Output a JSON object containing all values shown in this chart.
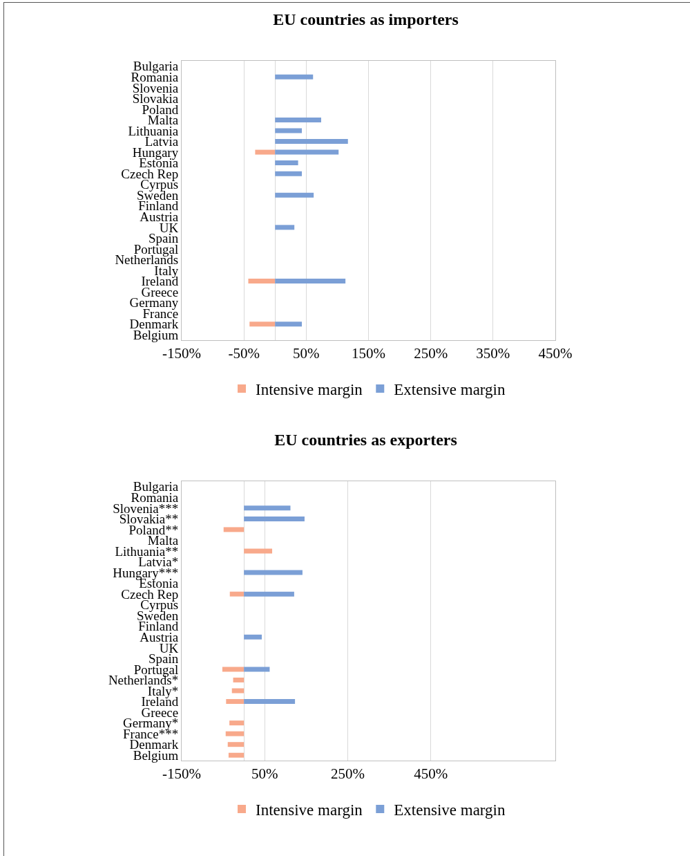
{
  "chart_data": [
    {
      "type": "bar",
      "title": "EU countries as importers",
      "orientation": "horizontal",
      "stacked": true,
      "grid": "x",
      "legend": "bottom",
      "categories": [
        "Bulgaria",
        "Romania",
        "Slovenia",
        "Slovakia",
        "Poland",
        "Malta",
        "Lithuania",
        "Latvia",
        "Hungary",
        "Estonia",
        "Czech Rep",
        "Cyrpus",
        "Sweden",
        "Finland",
        "Austria",
        "UK",
        "Spain",
        "Portugal",
        "Netherlands",
        "Italy",
        "Ireland",
        "Greece",
        "Germany",
        "France",
        "Denmark",
        "Belgium"
      ],
      "series": [
        {
          "name": "Intensive margin",
          "color": "#f8a98b",
          "values": [
            null,
            null,
            null,
            null,
            null,
            null,
            null,
            null,
            -32,
            null,
            null,
            null,
            null,
            null,
            null,
            null,
            null,
            null,
            null,
            null,
            -43,
            null,
            null,
            null,
            -41,
            null
          ]
        },
        {
          "name": "Extensive margin",
          "color": "#7b9fd6",
          "values": [
            null,
            61,
            null,
            null,
            null,
            74,
            43,
            117,
            102,
            37,
            43,
            null,
            62,
            null,
            null,
            31,
            null,
            null,
            null,
            null,
            113,
            null,
            null,
            null,
            43,
            null
          ]
        }
      ],
      "xlim": [
        -150,
        450
      ],
      "xticks": [
        {
          "value": -150,
          "label": "-150%"
        },
        {
          "value": -50,
          "label": "-50%"
        },
        {
          "value": 50,
          "label": "50%"
        },
        {
          "value": 150,
          "label": "150%"
        },
        {
          "value": 250,
          "label": "250%"
        },
        {
          "value": 350,
          "label": "350%"
        },
        {
          "value": 450,
          "label": "450%"
        }
      ]
    },
    {
      "type": "bar",
      "title": "EU countries as exporters",
      "orientation": "horizontal",
      "stacked": true,
      "grid": "x",
      "legend": "bottom",
      "categories": [
        "Bulgaria",
        "Romania",
        "Slovenia***",
        "Slovakia**",
        "Poland**",
        "Malta",
        "Lithuania**",
        "Latvia*",
        "Hungary***",
        "Estonia",
        "Czech Rep",
        "Cyrpus",
        "Sweden",
        "Finland",
        "Austria",
        "UK",
        "Spain",
        "Portugal",
        "Netherlands*",
        "Italy*",
        "Ireland",
        "Greece",
        "Germany*",
        "France***",
        "Denmark",
        "Belgium"
      ],
      "series": [
        {
          "name": "Intensive margin",
          "color": "#f8a98b",
          "values": [
            null,
            null,
            null,
            null,
            -49,
            null,
            68,
            null,
            null,
            null,
            -34,
            null,
            null,
            null,
            null,
            null,
            null,
            -52,
            -26,
            -29,
            -43,
            null,
            -35,
            -44,
            -39,
            -37
          ]
        },
        {
          "name": "Extensive margin",
          "color": "#7b9fd6",
          "values": [
            null,
            null,
            112,
            146,
            null,
            null,
            null,
            null,
            141,
            null,
            121,
            null,
            null,
            null,
            43,
            null,
            null,
            62,
            null,
            null,
            123,
            null,
            null,
            null,
            null,
            null
          ]
        }
      ],
      "xlim": [
        -150,
        750
      ],
      "xticks": [
        {
          "value": -150,
          "label": "-150%"
        },
        {
          "value": 50,
          "label": "50%"
        },
        {
          "value": 250,
          "label": "250%"
        },
        {
          "value": 450,
          "label": "450%"
        }
      ]
    }
  ]
}
